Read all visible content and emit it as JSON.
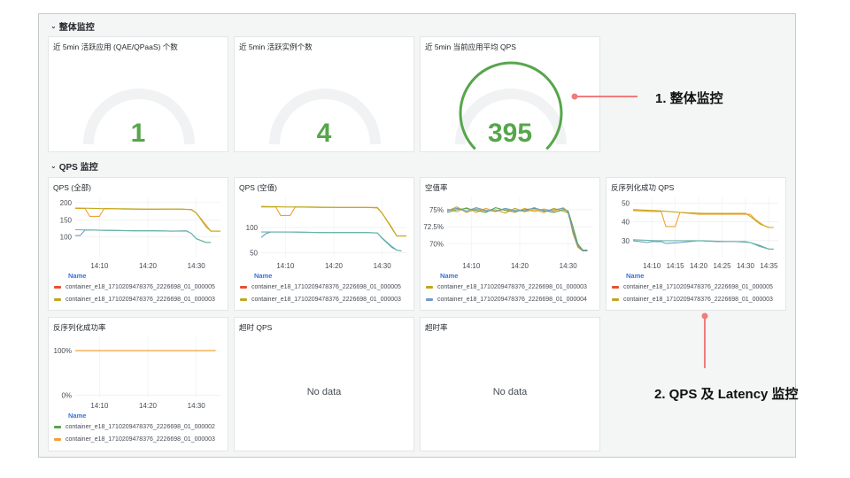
{
  "rows": {
    "overall": "整体监控",
    "qps": "QPS 监控"
  },
  "stats": [
    {
      "title": "近 5min 活跃应用 (QAE/QPaaS) 个数",
      "value": "1",
      "fraction": 0
    },
    {
      "title": "近 5min 活跃实例个数",
      "value": "4",
      "fraction": 0
    },
    {
      "title": "近 5min 当前应用平均 QPS",
      "value": "395",
      "fraction": 1
    }
  ],
  "name_label": "Name",
  "charts": [
    {
      "title": "QPS (全部)",
      "ylim": [
        40,
        215
      ],
      "yticks": [
        "200",
        "150",
        "100"
      ],
      "ytick_vals": [
        200,
        150,
        100
      ],
      "xlim": [
        0,
        30
      ],
      "xticks": [
        "14:10",
        "14:20",
        "14:30"
      ],
      "xtick_vals": [
        5,
        15,
        25
      ],
      "legend": [
        "container_e18_1710209478376_2226698_01_000005",
        "container_e18_1710209478376_2226698_01_000003"
      ],
      "series": [
        {
          "color": "#f2a033",
          "points": [
            [
              0,
              183
            ],
            [
              2,
              183
            ],
            [
              3,
              160
            ],
            [
              5,
              160
            ],
            [
              6,
              183
            ],
            [
              10,
              181
            ],
            [
              16,
              180
            ],
            [
              20,
              181
            ],
            [
              24,
              180
            ],
            [
              25,
              170
            ],
            [
              27,
              135
            ],
            [
              28,
              117
            ],
            [
              30,
              117
            ]
          ]
        },
        {
          "color": "#c0a81b",
          "points": [
            [
              0,
              184
            ],
            [
              4,
              183
            ],
            [
              6,
              182
            ],
            [
              10,
              182
            ],
            [
              14,
              181
            ],
            [
              18,
              181
            ],
            [
              22,
              181
            ],
            [
              24,
              179
            ],
            [
              25,
              170
            ],
            [
              27,
              130
            ],
            [
              28,
              117
            ],
            [
              30,
              117
            ]
          ]
        },
        {
          "color": "#6f9ac9",
          "points": [
            [
              0,
              104
            ],
            [
              1,
              104
            ],
            [
              2,
              120
            ],
            [
              4,
              120
            ],
            [
              8,
              119
            ],
            [
              12,
              118
            ],
            [
              16,
              118
            ],
            [
              20,
              117
            ],
            [
              23,
              118
            ],
            [
              24,
              110
            ],
            [
              25,
              95
            ],
            [
              27,
              84
            ],
            [
              28,
              84
            ]
          ]
        },
        {
          "color": "#67b6a4",
          "points": [
            [
              0,
              121
            ],
            [
              4,
              120
            ],
            [
              8,
              119
            ],
            [
              12,
              118
            ],
            [
              16,
              118
            ],
            [
              20,
              117
            ],
            [
              23,
              117
            ],
            [
              24,
              110
            ],
            [
              25,
              95
            ],
            [
              27,
              84
            ],
            [
              28,
              84
            ]
          ]
        }
      ]
    },
    {
      "title": "QPS (空值)",
      "ylim": [
        40,
        160
      ],
      "yticks": [
        "100",
        "50"
      ],
      "ytick_vals": [
        100,
        50
      ],
      "xlim": [
        0,
        30
      ],
      "xticks": [
        "14:10",
        "14:20",
        "14:30"
      ],
      "xtick_vals": [
        5,
        15,
        25
      ],
      "legend": [
        "container_e18_1710209478376_2226698_01_000005",
        "container_e18_1710209478376_2226698_01_000003"
      ],
      "series": [
        {
          "color": "#f2a033",
          "points": [
            [
              0,
              141
            ],
            [
              3,
              141
            ],
            [
              4,
              124
            ],
            [
              6,
              124
            ],
            [
              7,
              141
            ],
            [
              12,
              140
            ],
            [
              18,
              140
            ],
            [
              22,
              140
            ],
            [
              24,
              140
            ],
            [
              25,
              128
            ],
            [
              27,
              100
            ],
            [
              28,
              83
            ],
            [
              30,
              83
            ]
          ]
        },
        {
          "color": "#c0a81b",
          "points": [
            [
              0,
              142
            ],
            [
              5,
              141
            ],
            [
              10,
              141
            ],
            [
              16,
              140
            ],
            [
              22,
              140
            ],
            [
              24,
              139
            ],
            [
              25,
              128
            ],
            [
              27,
              98
            ],
            [
              28,
              83
            ],
            [
              30,
              83
            ]
          ]
        },
        {
          "color": "#6f9ac9",
          "points": [
            [
              0,
              80
            ],
            [
              1,
              88
            ],
            [
              2,
              91
            ],
            [
              6,
              91
            ],
            [
              12,
              90
            ],
            [
              18,
              90
            ],
            [
              22,
              90
            ],
            [
              24,
              89
            ],
            [
              25,
              79
            ],
            [
              27,
              62
            ],
            [
              28,
              55
            ],
            [
              29,
              53
            ]
          ]
        },
        {
          "color": "#67b6a4",
          "points": [
            [
              0,
              91
            ],
            [
              6,
              91
            ],
            [
              12,
              90
            ],
            [
              18,
              90
            ],
            [
              22,
              90
            ],
            [
              24,
              89
            ],
            [
              25,
              78
            ],
            [
              27,
              60
            ],
            [
              28,
              55
            ],
            [
              29,
              53
            ]
          ]
        }
      ]
    },
    {
      "title": "空值率",
      "ylim": [
        68,
        76.8
      ],
      "yticks": [
        "75%",
        "72.5%",
        "70%"
      ],
      "ytick_vals": [
        75,
        72.5,
        70
      ],
      "xlim": [
        0,
        30
      ],
      "xticks": [
        "14:10",
        "14:20",
        "14:30"
      ],
      "xtick_vals": [
        5,
        15,
        25
      ],
      "legend": [
        "container_e18_1710209478376_2226698_01_000003",
        "container_e18_1710209478376_2226698_01_000004"
      ],
      "series": [
        {
          "color": "#c0a81b",
          "points": [
            [
              0,
              74.8
            ],
            [
              2,
              75.4
            ],
            [
              4,
              74.6
            ],
            [
              6,
              75.1
            ],
            [
              8,
              74.8
            ],
            [
              10,
              75.0
            ],
            [
              12,
              74.5
            ],
            [
              14,
              75.2
            ],
            [
              16,
              74.7
            ],
            [
              18,
              75.0
            ],
            [
              20,
              74.6
            ],
            [
              22,
              75.2
            ],
            [
              24,
              74.8
            ],
            [
              25,
              74.5
            ],
            [
              26,
              72.0
            ],
            [
              27,
              69.8
            ],
            [
              28,
              69.0
            ],
            [
              29,
              69.0
            ]
          ]
        },
        {
          "color": "#f2a033",
          "points": [
            [
              0,
              75.1
            ],
            [
              2,
              74.7
            ],
            [
              4,
              75.3
            ],
            [
              6,
              74.6
            ],
            [
              8,
              75.2
            ],
            [
              10,
              74.7
            ],
            [
              12,
              75.1
            ],
            [
              14,
              74.6
            ],
            [
              16,
              75.2
            ],
            [
              18,
              74.7
            ],
            [
              20,
              75.1
            ],
            [
              22,
              74.8
            ],
            [
              24,
              75.3
            ],
            [
              25,
              74.7
            ],
            [
              26,
              71.5
            ],
            [
              27,
              69.5
            ],
            [
              28,
              69.0
            ],
            [
              29,
              69.0
            ]
          ]
        },
        {
          "color": "#56a64b",
          "points": [
            [
              0,
              74.6
            ],
            [
              2,
              75.0
            ],
            [
              4,
              75.2
            ],
            [
              6,
              74.9
            ],
            [
              8,
              74.6
            ],
            [
              10,
              75.3
            ],
            [
              12,
              74.9
            ],
            [
              14,
              74.7
            ],
            [
              16,
              75.0
            ],
            [
              18,
              75.2
            ],
            [
              20,
              74.9
            ],
            [
              22,
              74.6
            ],
            [
              24,
              75.0
            ],
            [
              25,
              74.8
            ],
            [
              26,
              72.5
            ],
            [
              27,
              70.0
            ],
            [
              28,
              69.1
            ],
            [
              29,
              69.1
            ]
          ]
        },
        {
          "color": "#6f9ac9",
          "points": [
            [
              0,
              74.9
            ],
            [
              2,
              75.2
            ],
            [
              4,
              74.8
            ],
            [
              6,
              75.3
            ],
            [
              8,
              74.9
            ],
            [
              10,
              74.8
            ],
            [
              12,
              75.2
            ],
            [
              14,
              74.9
            ],
            [
              16,
              74.8
            ],
            [
              18,
              75.3
            ],
            [
              20,
              74.8
            ],
            [
              22,
              75.0
            ],
            [
              24,
              75.2
            ],
            [
              25,
              74.6
            ],
            [
              26,
              71.8
            ],
            [
              27,
              69.6
            ],
            [
              28,
              69.0
            ],
            [
              29,
              69.0
            ]
          ]
        }
      ]
    },
    {
      "title": "反序列化成功 QPS",
      "ylim": [
        21,
        53
      ],
      "yticks": [
        "50",
        "40",
        "30"
      ],
      "ytick_vals": [
        50,
        40,
        30
      ],
      "xlim": [
        0,
        31
      ],
      "xticks": [
        "14:10",
        "14:15",
        "14:20",
        "14:25",
        "14:30",
        "14:35"
      ],
      "xtick_vals": [
        4,
        9,
        14,
        19,
        24,
        29
      ],
      "legend": [
        "container_e18_1710209478376_2226698_01_000005",
        "container_e18_1710209478376_2226698_01_000003"
      ],
      "series": [
        {
          "color": "#f2a033",
          "points": [
            [
              0,
              46
            ],
            [
              4,
              45.5
            ],
            [
              6,
              45.5
            ],
            [
              7,
              37.5
            ],
            [
              9,
              37.5
            ],
            [
              10,
              45
            ],
            [
              14,
              44
            ],
            [
              18,
              44
            ],
            [
              22,
              44
            ],
            [
              25,
              44
            ],
            [
              26,
              41.5
            ],
            [
              28,
              38
            ],
            [
              29,
              37
            ],
            [
              30,
              37
            ]
          ]
        },
        {
          "color": "#c0a81b",
          "points": [
            [
              0,
              46.5
            ],
            [
              5,
              46
            ],
            [
              10,
              45
            ],
            [
              15,
              44.5
            ],
            [
              20,
              44.5
            ],
            [
              24,
              44.5
            ],
            [
              25,
              43
            ],
            [
              27,
              39
            ],
            [
              29,
              37
            ],
            [
              30,
              37
            ]
          ]
        },
        {
          "color": "#6f9ac9",
          "points": [
            [
              0,
              30
            ],
            [
              3,
              29
            ],
            [
              4,
              29.5
            ],
            [
              6,
              29.5
            ],
            [
              7,
              28.5
            ],
            [
              10,
              29
            ],
            [
              14,
              30
            ],
            [
              18,
              29.5
            ],
            [
              22,
              29.5
            ],
            [
              25,
              29
            ],
            [
              27,
              27.5
            ],
            [
              29,
              25.5
            ],
            [
              30,
              25.5
            ]
          ]
        },
        {
          "color": "#67b6a4",
          "points": [
            [
              0,
              30.5
            ],
            [
              5,
              30
            ],
            [
              10,
              30
            ],
            [
              15,
              30
            ],
            [
              20,
              29.5
            ],
            [
              24,
              29.5
            ],
            [
              25,
              29
            ],
            [
              27,
              27
            ],
            [
              29,
              25.5
            ],
            [
              30,
              25.5
            ]
          ]
        }
      ]
    },
    {
      "title": "反序列化成功率",
      "ylim": [
        -5,
        130
      ],
      "yticks": [
        "100%",
        "0%"
      ],
      "ytick_vals": [
        100,
        0
      ],
      "xlim": [
        0,
        30
      ],
      "xticks": [
        "14:10",
        "14:20",
        "14:30"
      ],
      "xtick_vals": [
        5,
        15,
        25
      ],
      "legend": [
        "container_e18_1710209478376_2226698_01_000002",
        "container_e18_1710209478376_2226698_01_000003"
      ],
      "series": [
        {
          "color": "#c0a81b",
          "points": [
            [
              0,
              100
            ],
            [
              29,
              100
            ]
          ]
        },
        {
          "color": "#f2a033",
          "points": [
            [
              0,
              100
            ],
            [
              29,
              100
            ]
          ]
        }
      ]
    }
  ],
  "nodata_panels": [
    {
      "title": "超时 QPS",
      "message": "No data"
    },
    {
      "title": "超时率",
      "message": "No data"
    }
  ],
  "legend_colors": {
    "qps_all": [
      "#e8502e",
      "#c0a81b"
    ],
    "qps_null": [
      "#e8502e",
      "#c0a81b"
    ],
    "null_rate": [
      "#c0a81b",
      "#6f9ac9"
    ],
    "deser_qps": [
      "#e8502e",
      "#c0a81b"
    ],
    "deser_rate": [
      "#56a64b",
      "#f2a033"
    ]
  },
  "annotations": {
    "overall": "1. 整体监控",
    "qps": "2. QPS 及 Latency 监控",
    "color": "#f07c7c"
  }
}
